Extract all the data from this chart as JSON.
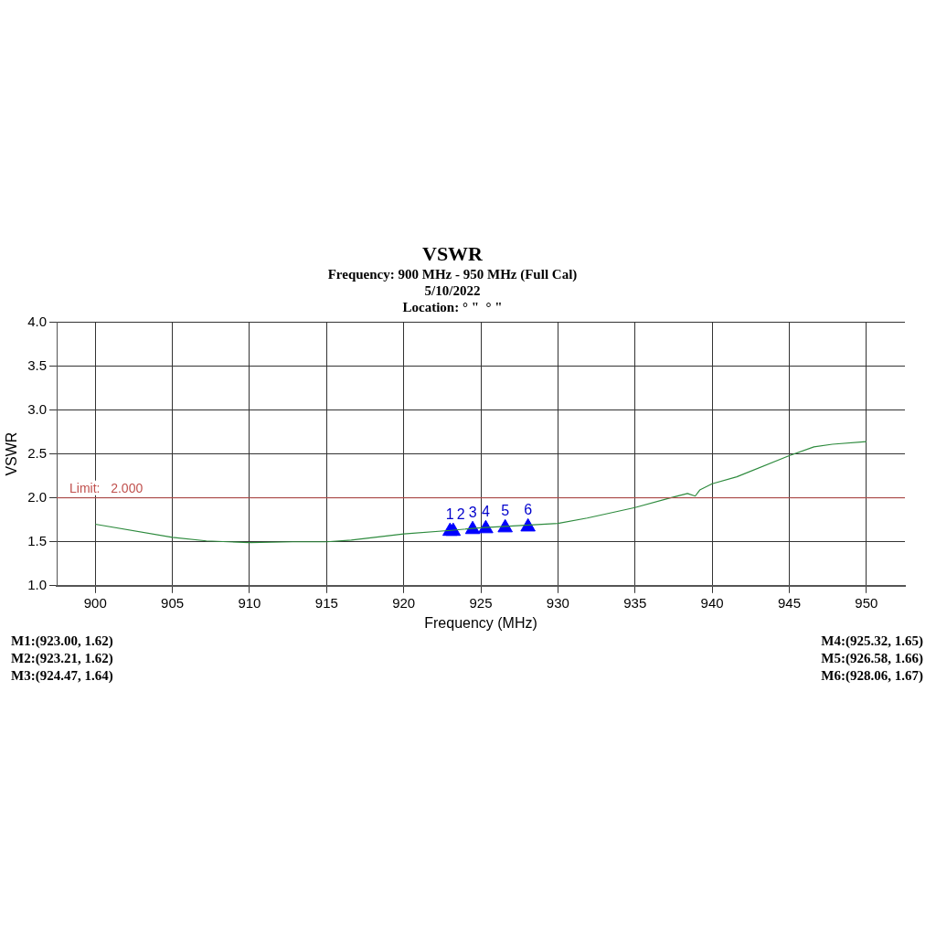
{
  "chart_data": {
    "type": "line",
    "title": "VSWR",
    "subtitle": "Frequency: 900 MHz - 950 MHz (Full Cal)\n5/10/2022\nLocation: ° \"  ° \"",
    "xlabel": "Frequency (MHz)",
    "ylabel": "VSWR",
    "xlim": [
      897.5,
      952.5
    ],
    "xticks": [
      900,
      905,
      910,
      915,
      920,
      925,
      930,
      935,
      940,
      945,
      950
    ],
    "ylim": [
      1,
      4
    ],
    "yticks": [
      {
        "value": 1,
        "label": "1.0"
      },
      {
        "value": 1.5,
        "label": "1.5"
      },
      {
        "value": 2,
        "label": "2.0"
      },
      {
        "value": 2.5,
        "label": "2.5"
      },
      {
        "value": 3,
        "label": "3.0"
      },
      {
        "value": 3.5,
        "label": "3.5"
      },
      {
        "value": 4,
        "label": "4.0"
      }
    ],
    "grid": true,
    "series": [
      {
        "color": "#2e8b3e",
        "marker": "none",
        "x": [
          900,
          905,
          907.2,
          910,
          912.8,
          915,
          916.6,
          920,
          923.06,
          925,
          930,
          931.9,
          935,
          937.3,
          938.4,
          938.9,
          939.2,
          940,
          941.6,
          945,
          946.6,
          947.8,
          950
        ],
        "values": [
          1.7,
          1.55,
          1.51,
          1.49,
          1.5,
          1.5,
          1.52,
          1.59,
          1.63,
          1.66,
          1.71,
          1.77,
          1.89,
          2.0,
          2.05,
          2.02,
          2.09,
          2.16,
          2.24,
          2.48,
          2.58,
          2.61,
          2.64
        ]
      },
      {
        "type": "scatter",
        "color": "#0000ff",
        "marker": "triangle",
        "x": [
          923.0,
          923.21,
          924.47,
          925.32,
          926.58,
          928.06
        ],
        "values": [
          1.62,
          1.62,
          1.64,
          1.65,
          1.66,
          1.67
        ]
      }
    ],
    "ref_lines": [
      {
        "axis": "y",
        "value": 2,
        "label": "Limit:   2.000",
        "color": "#c0504d"
      }
    ],
    "annotations": [
      {
        "text": "1",
        "x": 923.0,
        "y": 1.62
      },
      {
        "text": "2",
        "x": 923.21,
        "y": 1.62
      },
      {
        "text": "3",
        "x": 924.47,
        "y": 1.64
      },
      {
        "text": "4",
        "x": 925.32,
        "y": 1.65
      },
      {
        "text": "5",
        "x": 926.58,
        "y": 1.66
      },
      {
        "text": "6",
        "x": 928.06,
        "y": 1.67
      },
      "M1:(923.00,  1.62)",
      "M2:(923.21,  1.62)",
      "M3:(924.47,  1.64)",
      "M4:(925.32,  1.65)",
      "M5:(926.58,  1.66)",
      "M6:(928.06,  1.67)"
    ]
  }
}
